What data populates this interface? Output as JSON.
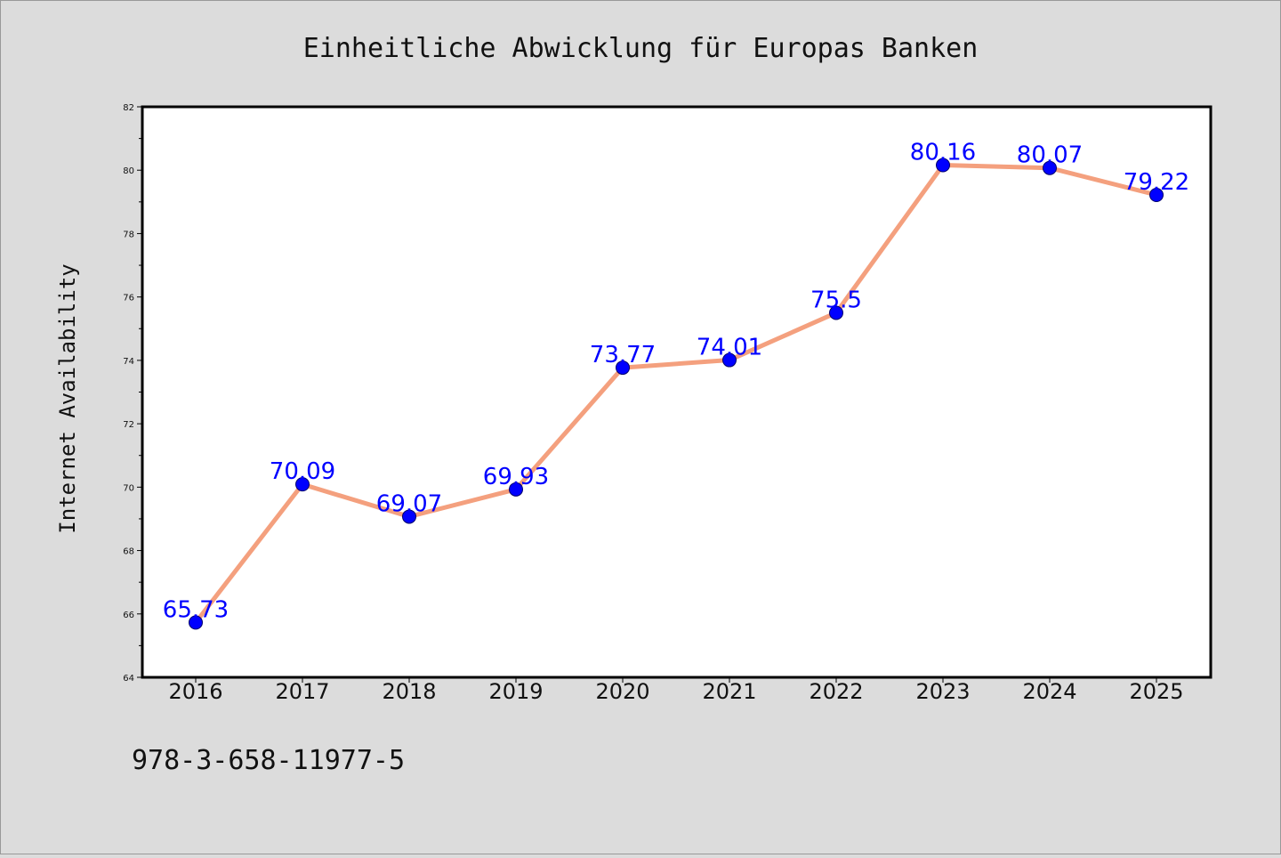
{
  "chart_data": {
    "type": "line",
    "title": "Einheitliche Abwicklung für Europas Banken",
    "xlabel": "",
    "ylabel": "Internet Availability",
    "categories": [
      "2016",
      "2017",
      "2018",
      "2019",
      "2020",
      "2021",
      "2022",
      "2023",
      "2024",
      "2025"
    ],
    "series": [
      {
        "values": [
          65.73,
          70.09,
          69.07,
          69.93,
          73.77,
          74.01,
          75.5,
          80.16,
          80.07,
          79.22
        ],
        "data_labels": [
          "65.73",
          "70.09",
          "69.07",
          "69.93",
          "73.77",
          "74.01",
          "75.5",
          "80.16",
          "80.07",
          "79.22"
        ]
      }
    ],
    "ylim": [
      64,
      82
    ],
    "yticks": [
      "64",
      "66",
      "68",
      "70",
      "72",
      "74",
      "76",
      "78",
      "80",
      "82"
    ],
    "grid": false,
    "line_color": "#f4a07e",
    "marker_color": "#0000ff",
    "label_color": "#0000ff"
  },
  "footer": {
    "isbn": "978-3-658-11977-5"
  },
  "colors": {
    "background": "#dcdcdc",
    "plot_background": "#ffffff"
  }
}
